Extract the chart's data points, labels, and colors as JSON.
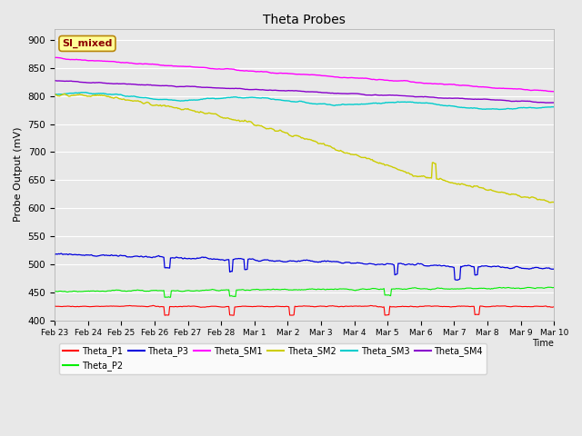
{
  "title": "Theta Probes",
  "ylabel": "Probe Output (mV)",
  "xlabel": "Time",
  "fig_facecolor": "#e8e8e8",
  "plot_bg_color": "#e8e8e8",
  "ylim": [
    400,
    920
  ],
  "yticks": [
    400,
    450,
    500,
    550,
    600,
    650,
    700,
    750,
    800,
    850,
    900
  ],
  "x_labels": [
    "Feb 23",
    "Feb 24",
    "Feb 25",
    "Feb 26",
    "Feb 27",
    "Feb 28",
    "Mar 1",
    "Mar 2",
    "Mar 3",
    "Mar 4",
    "Mar 5",
    "Mar 6",
    "Mar 7",
    "Mar 8",
    "Mar 9",
    "Mar 10"
  ],
  "annotation_text": "SI_mixed",
  "annotation_color": "#8b0000",
  "annotation_bg": "#ffff99",
  "annotation_border": "#b8860b",
  "series": {
    "Theta_P1": {
      "color": "#ff0000",
      "lw": 0.8
    },
    "Theta_P2": {
      "color": "#00ee00",
      "lw": 0.8
    },
    "Theta_P3": {
      "color": "#0000dd",
      "lw": 0.9
    },
    "Theta_SM1": {
      "color": "#ff00ff",
      "lw": 1.0
    },
    "Theta_SM2": {
      "color": "#cccc00",
      "lw": 1.0
    },
    "Theta_SM3": {
      "color": "#00cccc",
      "lw": 1.0
    },
    "Theta_SM4": {
      "color": "#8800cc",
      "lw": 1.0
    }
  }
}
